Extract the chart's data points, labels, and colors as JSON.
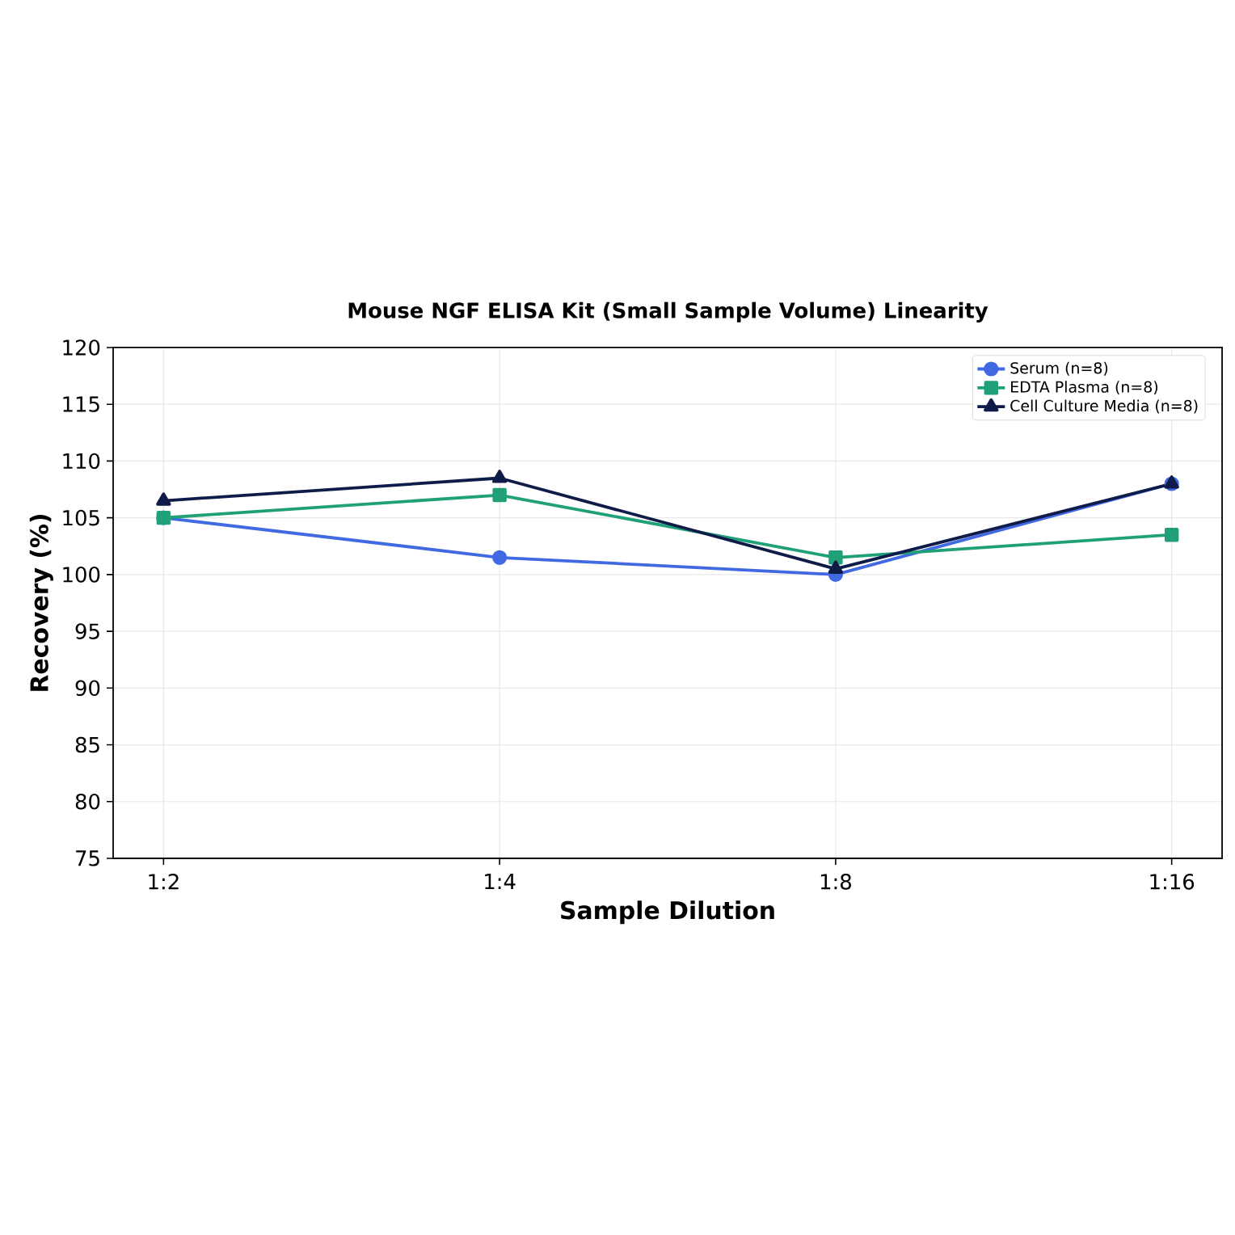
{
  "chart_data": {
    "type": "line",
    "title": "Mouse NGF ELISA Kit (Small Sample Volume) Linearity",
    "xlabel": "Sample Dilution",
    "ylabel": "Recovery (%)",
    "categories": [
      "1:2",
      "1:4",
      "1:8",
      "1:16"
    ],
    "series": [
      {
        "name": "Serum (n=8)",
        "color": "#4169e1",
        "marker": "circle",
        "values": [
          105,
          101.5,
          100,
          108
        ]
      },
      {
        "name": "EDTA Plasma (n=8)",
        "color": "#20a079",
        "marker": "square",
        "values": [
          105,
          107,
          101.5,
          103.5
        ]
      },
      {
        "name": "Cell Culture Media (n=8)",
        "color": "#0f1b48",
        "marker": "triangle",
        "values": [
          106.5,
          108.5,
          100.5,
          108
        ]
      }
    ],
    "ylim": [
      75,
      120
    ],
    "yticks": [
      75,
      80,
      85,
      90,
      95,
      100,
      105,
      110,
      115,
      120
    ],
    "grid": true,
    "legend": "top right",
    "line_style": "solid"
  }
}
